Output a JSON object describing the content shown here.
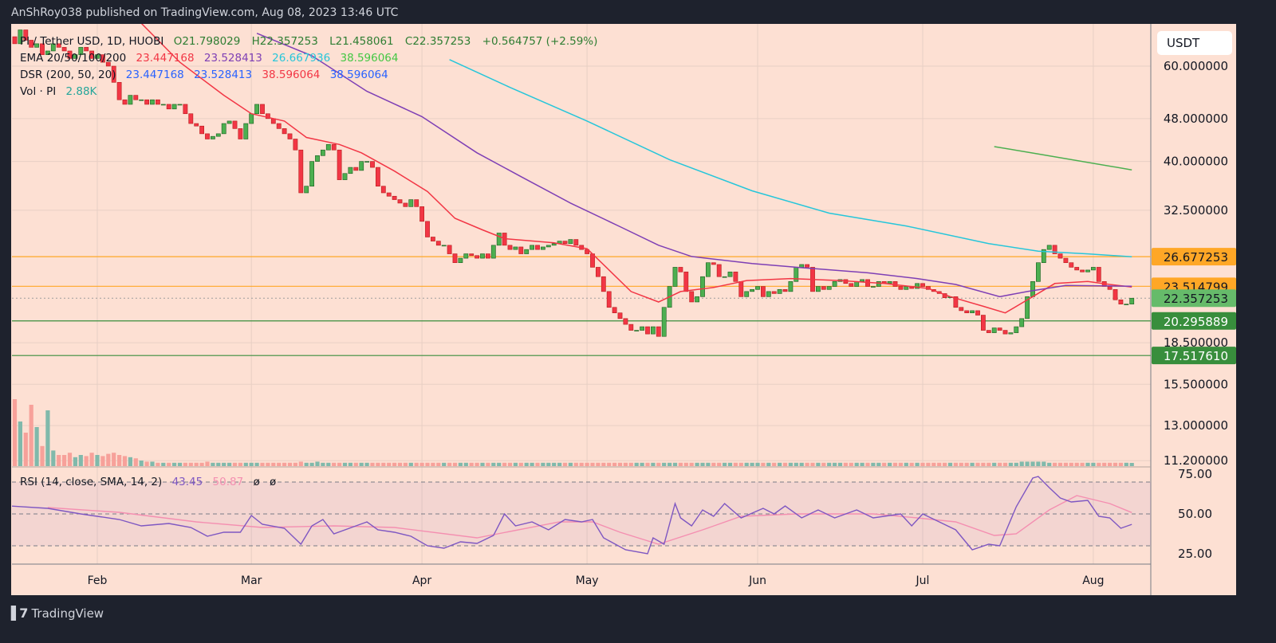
{
  "header": {
    "published": "AnShRoy038 published on TradingView.com, Aug 08, 2023 13:46 UTC"
  },
  "legend": {
    "symbol": "PI / Tether USD, 1D, HUOBI",
    "open": "O21.798029",
    "high": "H22.357253",
    "low": "L21.458061",
    "close": "C22.357253",
    "change": "+0.564757 (+2.59%)",
    "ema_label": "EMA 20/50/100/200",
    "ema_values": [
      "23.447168",
      "23.528413",
      "26.667936",
      "38.596064"
    ],
    "dsr_label": "DSR (200, 50, 20)",
    "dsr_values": [
      "23.447168",
      "23.528413",
      "38.596064",
      "38.596064"
    ],
    "vol_label": "Vol · PI",
    "vol_value": "2.88K",
    "rsi_label": "RSI (14, close, SMA, 14, 2)",
    "rsi_value": "43.45",
    "rsi_sma_value": "50.87",
    "rsi_extra": [
      "ø",
      "ø"
    ]
  },
  "currency_button": "USDT",
  "footer": {
    "brand": "TradingView",
    "logo_text": "17"
  },
  "colors": {
    "background": "#fde0d3",
    "up": "#4caf50",
    "down": "#f23645",
    "ema20": "#f23645",
    "ema50": "#7e3fb5",
    "ema100": "#26c6da",
    "ema200": "#4caf50",
    "rsi": "#7e57c2",
    "rsi_sma": "#f48fb1",
    "vol_up": "#80b9ab",
    "vol_down": "#f7a19a"
  },
  "chart_data": {
    "type": "candlestick",
    "scale": "log",
    "grid": true,
    "x_ticks": [
      {
        "label": "Feb",
        "date": "2023-02-01"
      },
      {
        "label": "Mar",
        "date": "2023-03-01"
      },
      {
        "label": "Apr",
        "date": "2023-04-01"
      },
      {
        "label": "May",
        "date": "2023-05-01"
      },
      {
        "label": "Jun",
        "date": "2023-06-01"
      },
      {
        "label": "Jul",
        "date": "2023-07-01"
      },
      {
        "label": "Aug",
        "date": "2023-08-01"
      }
    ],
    "y_ticks": [
      {
        "label": "60.000000",
        "value": 60
      },
      {
        "label": "48.000000",
        "value": 48
      },
      {
        "label": "40.000000",
        "value": 40
      },
      {
        "label": "32.500000",
        "value": 32.5
      },
      {
        "label": "18.500000",
        "value": 18.5
      },
      {
        "label": "15.500000",
        "value": 15.5
      },
      {
        "label": "13.000000",
        "value": 13
      },
      {
        "label": "11.200000",
        "value": 11.2
      }
    ],
    "price_levels": [
      {
        "label": "26.677253",
        "value": 26.677253,
        "color": "#ffa726",
        "text_color": "#131722"
      },
      {
        "label": "23.514799",
        "value": 23.514799,
        "color": "#ffa726",
        "text_color": "#131722"
      },
      {
        "label": "22.357253",
        "value": 22.357253,
        "color": "#66bb6a",
        "text_color": "#131722",
        "style": "dotted-current"
      },
      {
        "label": "20.295889",
        "value": 20.295889,
        "color": "#388e3c",
        "text_color": "#ffffff"
      },
      {
        "label": "17.517610",
        "value": 17.51761,
        "color": "#388e3c",
        "text_color": "#ffffff"
      }
    ],
    "start_date": "2023-01-16",
    "closes": [
      68,
      66,
      70,
      67,
      65,
      66,
      63,
      64,
      66,
      65,
      64,
      62,
      63,
      65,
      64,
      62,
      63,
      61,
      60,
      56,
      52,
      51,
      53,
      52,
      52,
      51,
      52,
      51,
      51,
      50,
      51,
      51,
      49,
      47,
      46.5,
      45,
      44,
      44.5,
      45,
      47,
      47.5,
      46,
      44,
      47,
      49,
      51,
      49,
      48,
      47,
      46,
      45,
      44,
      42,
      35,
      36,
      40,
      41,
      42,
      43,
      42,
      37,
      38,
      39,
      38.5,
      40,
      40,
      39,
      36,
      35,
      34.5,
      34,
      33.5,
      33,
      34,
      33,
      31,
      29,
      28.5,
      28,
      28,
      27,
      26,
      26.5,
      27,
      26.8,
      26.5,
      27,
      26.5,
      28,
      29.5,
      28,
      27.5,
      27.8,
      27,
      27.5,
      28,
      27.5,
      27.8,
      28,
      28.2,
      28.5,
      28.2,
      28.7,
      28,
      27.5,
      27,
      25.5,
      24.5,
      23,
      21.5,
      21,
      20.5,
      20,
      19.5,
      19.5,
      19.8,
      19.2,
      19.8,
      19,
      21.5,
      23.5,
      25.5,
      25,
      23,
      22,
      22.5,
      24.5,
      26,
      25.8,
      24.5,
      24.5,
      25,
      24,
      22.5,
      23,
      23.2,
      23.5,
      22.5,
      23,
      22.8,
      23.2,
      23,
      24,
      25.5,
      25.8,
      25.5,
      23,
      23.5,
      23.2,
      23.5,
      24,
      24.2,
      23.8,
      23.5,
      24,
      24.2,
      23.5,
      23.5,
      24,
      23.8,
      24,
      23.5,
      23.2,
      23.5,
      23.3,
      23.8,
      23.5,
      23.2,
      23,
      22.8,
      22.4,
      22.5,
      21.5,
      21.2,
      21,
      21.2,
      20.8,
      19.5,
      19.3,
      19.7,
      19.5,
      19.2,
      19.3,
      19.8,
      20.5,
      22.5,
      24,
      26,
      27.5,
      28,
      27,
      26.5,
      26,
      25.5,
      25.2,
      25,
      25.2,
      25.5,
      24,
      23.5,
      23.2,
      22.2,
      21.8,
      21.8,
      22.357253
    ],
    "volume_k": [
      95,
      60,
      40,
      30,
      55,
      35,
      18,
      50,
      14,
      10,
      10,
      12,
      8,
      10,
      9,
      12,
      10,
      9,
      11,
      12,
      10,
      9,
      8,
      7,
      5,
      4,
      4,
      3,
      3,
      3,
      3,
      3,
      3,
      3,
      3,
      3,
      4,
      3,
      3,
      3,
      3,
      3,
      3,
      3,
      3,
      3,
      3,
      3,
      3,
      3,
      3,
      3,
      3,
      4,
      3,
      3,
      4,
      3,
      3,
      3,
      3,
      3,
      3,
      3,
      3,
      3,
      3,
      3,
      3,
      3,
      3,
      3,
      3,
      3,
      3,
      3,
      3,
      3,
      3,
      3,
      3,
      3,
      3,
      3,
      3,
      3,
      3,
      3,
      3,
      3,
      3,
      3,
      3,
      3,
      3,
      3,
      3,
      3,
      3,
      3,
      3,
      3,
      3,
      3,
      3,
      3,
      3,
      3,
      3,
      3,
      3,
      3,
      3,
      3,
      3,
      3,
      3,
      3,
      3,
      3,
      3,
      3,
      3,
      3,
      3,
      3,
      3,
      3,
      3,
      3,
      3,
      3,
      3,
      3,
      3,
      3,
      3,
      3,
      3,
      3,
      3,
      3,
      3,
      3,
      3,
      3,
      3,
      3,
      3,
      3,
      3,
      3,
      3,
      3,
      3,
      3,
      3,
      3,
      3,
      3,
      3,
      3,
      3,
      3,
      3,
      3,
      3,
      3,
      3,
      3,
      3,
      3,
      3,
      3,
      3,
      3,
      3,
      3,
      3,
      3,
      3,
      3,
      3,
      3,
      4,
      4,
      4,
      4,
      4,
      3,
      3,
      3,
      3,
      3,
      3,
      3,
      3,
      3,
      3,
      3,
      3,
      3,
      3,
      3,
      2.88
    ],
    "series": [
      {
        "name": "EMA 20",
        "color": "#f23645",
        "points": [
          [
            "2023-02-09",
            72
          ],
          [
            "2023-02-16",
            61
          ],
          [
            "2023-02-24",
            53
          ],
          [
            "2023-03-01",
            49
          ],
          [
            "2023-03-07",
            47.5
          ],
          [
            "2023-03-11",
            44.3
          ],
          [
            "2023-03-17",
            43
          ],
          [
            "2023-03-21",
            41.5
          ],
          [
            "2023-03-27",
            38.4
          ],
          [
            "2023-04-02",
            35.2
          ],
          [
            "2023-04-07",
            31.4
          ],
          [
            "2023-04-12",
            29.9
          ],
          [
            "2023-04-16",
            28.8
          ],
          [
            "2023-04-25",
            28.3
          ],
          [
            "2023-05-01",
            27.6
          ],
          [
            "2023-05-05",
            25.2
          ],
          [
            "2023-05-09",
            23
          ],
          [
            "2023-05-14",
            22
          ],
          [
            "2023-05-18",
            23
          ],
          [
            "2023-05-24",
            23.4
          ],
          [
            "2023-05-30",
            24.1
          ],
          [
            "2023-06-07",
            24.3
          ],
          [
            "2023-06-16",
            24.1
          ],
          [
            "2023-06-24",
            23.8
          ],
          [
            "2023-07-02",
            23.3
          ],
          [
            "2023-07-06",
            22.5
          ],
          [
            "2023-07-12",
            21.6
          ],
          [
            "2023-07-16",
            21
          ],
          [
            "2023-07-21",
            22.5
          ],
          [
            "2023-07-25",
            23.8
          ],
          [
            "2023-07-31",
            24
          ],
          [
            "2023-08-04",
            23.7
          ],
          [
            "2023-08-08",
            23.447168
          ]
        ]
      },
      {
        "name": "EMA 50",
        "color": "#7e3fb5",
        "points": [
          [
            "2023-03-02",
            69
          ],
          [
            "2023-03-12",
            62.7
          ],
          [
            "2023-03-22",
            53.9
          ],
          [
            "2023-04-01",
            48.4
          ],
          [
            "2023-04-11",
            41.5
          ],
          [
            "2023-04-19",
            37.5
          ],
          [
            "2023-04-28",
            33.5
          ],
          [
            "2023-05-07",
            30.3
          ],
          [
            "2023-05-14",
            28
          ],
          [
            "2023-05-20",
            26.7
          ],
          [
            "2023-05-31",
            25.9
          ],
          [
            "2023-06-08",
            25.5
          ],
          [
            "2023-06-21",
            24.9
          ],
          [
            "2023-06-30",
            24.3
          ],
          [
            "2023-07-07",
            23.7
          ],
          [
            "2023-07-15",
            22.5
          ],
          [
            "2023-07-20",
            23
          ],
          [
            "2023-07-27",
            23.6
          ],
          [
            "2023-08-08",
            23.528413
          ]
        ]
      },
      {
        "name": "EMA 100",
        "color": "#26c6da",
        "points": [
          [
            "2023-04-06",
            61.7
          ],
          [
            "2023-04-17",
            54.8
          ],
          [
            "2023-05-01",
            47.5
          ],
          [
            "2023-05-16",
            40.3
          ],
          [
            "2023-05-31",
            35.3
          ],
          [
            "2023-06-14",
            32.1
          ],
          [
            "2023-06-28",
            30.4
          ],
          [
            "2023-07-13",
            28.2
          ],
          [
            "2023-07-22",
            27.3
          ],
          [
            "2023-07-31",
            27
          ],
          [
            "2023-08-08",
            26.667936
          ]
        ]
      },
      {
        "name": "EMA 200",
        "color": "#4caf50",
        "points": [
          [
            "2023-07-14",
            42.6
          ],
          [
            "2023-07-22",
            41.3
          ],
          [
            "2023-08-08",
            38.596064
          ]
        ]
      }
    ],
    "rsi": {
      "y_ticks": [
        {
          "label": "75.00",
          "value": 75
        },
        {
          "label": "50.00",
          "value": 50
        },
        {
          "label": "25.00",
          "value": 25
        }
      ],
      "bands": [
        70,
        50,
        30
      ],
      "rsi_points": [
        [
          "2023-01-16",
          55
        ],
        [
          "2023-01-23",
          53.5
        ],
        [
          "2023-01-29",
          50
        ],
        [
          "2023-02-05",
          46.5
        ],
        [
          "2023-02-09",
          42.5
        ],
        [
          "2023-02-14",
          44
        ],
        [
          "2023-02-18",
          41.5
        ],
        [
          "2023-02-21",
          36
        ],
        [
          "2023-02-24",
          38.5
        ],
        [
          "2023-02-27",
          38.5
        ],
        [
          "2023-03-01",
          49
        ],
        [
          "2023-03-03",
          43.5
        ],
        [
          "2023-03-07",
          41
        ],
        [
          "2023-03-10",
          31
        ],
        [
          "2023-03-12",
          42.5
        ],
        [
          "2023-03-14",
          46.5
        ],
        [
          "2023-03-16",
          37.5
        ],
        [
          "2023-03-20",
          42.5
        ],
        [
          "2023-03-22",
          45
        ],
        [
          "2023-03-24",
          40
        ],
        [
          "2023-03-27",
          38.5
        ],
        [
          "2023-03-30",
          36
        ],
        [
          "2023-04-02",
          30
        ],
        [
          "2023-04-05",
          28.5
        ],
        [
          "2023-04-08",
          32.5
        ],
        [
          "2023-04-11",
          31.5
        ],
        [
          "2023-04-14",
          36.5
        ],
        [
          "2023-04-16",
          50
        ],
        [
          "2023-04-18",
          42.5
        ],
        [
          "2023-04-21",
          45
        ],
        [
          "2023-04-24",
          40
        ],
        [
          "2023-04-27",
          46.5
        ],
        [
          "2023-04-30",
          45
        ],
        [
          "2023-05-02",
          46.5
        ],
        [
          "2023-05-04",
          35
        ],
        [
          "2023-05-08",
          27.5
        ],
        [
          "2023-05-12",
          25
        ],
        [
          "2023-05-13",
          35
        ],
        [
          "2023-05-15",
          31
        ],
        [
          "2023-05-17",
          56.5
        ],
        [
          "2023-05-18",
          47.5
        ],
        [
          "2023-05-20",
          42.5
        ],
        [
          "2023-05-22",
          52.5
        ],
        [
          "2023-05-24",
          48.5
        ],
        [
          "2023-05-26",
          56.5
        ],
        [
          "2023-05-29",
          47.5
        ],
        [
          "2023-06-02",
          53.5
        ],
        [
          "2023-06-04",
          50
        ],
        [
          "2023-06-06",
          55
        ],
        [
          "2023-06-09",
          47.5
        ],
        [
          "2023-06-12",
          52.5
        ],
        [
          "2023-06-15",
          47.5
        ],
        [
          "2023-06-19",
          52.5
        ],
        [
          "2023-06-22",
          47.5
        ],
        [
          "2023-06-27",
          50
        ],
        [
          "2023-06-29",
          42.5
        ],
        [
          "2023-07-01",
          50
        ],
        [
          "2023-07-04",
          45
        ],
        [
          "2023-07-07",
          40
        ],
        [
          "2023-07-10",
          27.5
        ],
        [
          "2023-07-13",
          31
        ],
        [
          "2023-07-15",
          30
        ],
        [
          "2023-07-18",
          54.5
        ],
        [
          "2023-07-21",
          72.5
        ],
        [
          "2023-07-22",
          73.5
        ],
        [
          "2023-07-24",
          66.5
        ],
        [
          "2023-07-26",
          60
        ],
        [
          "2023-07-28",
          57.5
        ],
        [
          "2023-07-31",
          58.5
        ],
        [
          "2023-08-02",
          48.5
        ],
        [
          "2023-08-04",
          47.5
        ],
        [
          "2023-08-06",
          41
        ],
        [
          "2023-08-08",
          43.45
        ]
      ],
      "sma_points": [
        [
          "2023-01-23",
          54
        ],
        [
          "2023-02-05",
          51
        ],
        [
          "2023-02-19",
          45
        ],
        [
          "2023-03-03",
          41.5
        ],
        [
          "2023-03-16",
          42.5
        ],
        [
          "2023-03-27",
          41.5
        ],
        [
          "2023-04-11",
          35
        ],
        [
          "2023-04-26",
          45
        ],
        [
          "2023-05-02",
          45
        ],
        [
          "2023-05-07",
          38.5
        ],
        [
          "2023-05-14",
          31
        ],
        [
          "2023-05-22",
          40
        ],
        [
          "2023-05-29",
          48.5
        ],
        [
          "2023-06-08",
          50
        ],
        [
          "2023-06-22",
          50
        ],
        [
          "2023-06-30",
          47.5
        ],
        [
          "2023-07-07",
          45
        ],
        [
          "2023-07-14",
          36.5
        ],
        [
          "2023-07-18",
          37.5
        ],
        [
          "2023-07-24",
          52.5
        ],
        [
          "2023-07-29",
          61.5
        ],
        [
          "2023-08-04",
          56.5
        ],
        [
          "2023-08-08",
          50.87
        ]
      ]
    }
  }
}
